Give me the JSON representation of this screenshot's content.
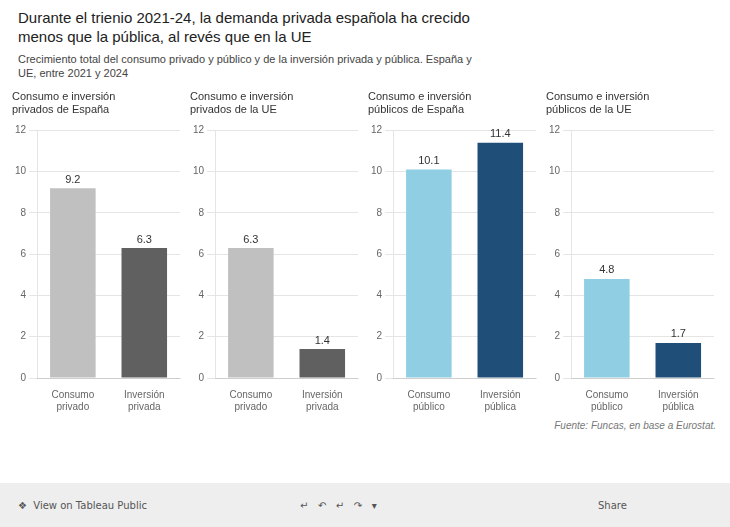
{
  "title": "Durante el trienio 2021-24, la demanda privada española ha crecido\nmenos que la pública, al revés que en la UE",
  "subtitle": "Crecimiento total del consumo privado y público y de la inversión privada y pública. España y\nUE, entre 2021 y 2024",
  "source": "Fuente: Funcas, en base a Eurostat.",
  "annotations": [
    "❖  View on Tableau Public",
    "↵   ↶   ↵   ↷   ▾",
    "Share"
  ],
  "chart_data": [
    {
      "type": "bar",
      "title": "Consumo e inversión\nprivados de España",
      "categories": [
        "Consumo\nprivado",
        "Inversión\nprivada"
      ],
      "values": [
        9.2,
        6.3
      ],
      "colors": [
        "#C0C0C0",
        "#606060"
      ],
      "ylim": [
        0,
        12
      ],
      "yticks": [
        0,
        2,
        4,
        6,
        8,
        10,
        12
      ],
      "grid": true,
      "data_labels": true
    },
    {
      "type": "bar",
      "title": "Consumo e inversión\nprivados de la UE",
      "categories": [
        "Consumo\nprivado",
        "Inversión\nprivada"
      ],
      "values": [
        6.3,
        1.4
      ],
      "colors": [
        "#C0C0C0",
        "#606060"
      ],
      "ylim": [
        0,
        12
      ],
      "yticks": [
        0,
        2,
        4,
        6,
        8,
        10,
        12
      ],
      "grid": true,
      "data_labels": true
    },
    {
      "type": "bar",
      "title": "Consumo e inversión\npúblicos de España",
      "categories": [
        "Consumo\npúblico",
        "Inversión\npública"
      ],
      "values": [
        10.1,
        11.4
      ],
      "colors": [
        "#90CEE4",
        "#1F4E79"
      ],
      "ylim": [
        0,
        12
      ],
      "yticks": [
        0,
        2,
        4,
        6,
        8,
        10,
        12
      ],
      "grid": true,
      "data_labels": true
    },
    {
      "type": "bar",
      "title": "Consumo e inversión\npúblicos de la UE",
      "categories": [
        "Consumo\npúblico",
        "Inversión\npública"
      ],
      "values": [
        4.8,
        1.7
      ],
      "colors": [
        "#90CEE4",
        "#1F4E79"
      ],
      "ylim": [
        0,
        12
      ],
      "yticks": [
        0,
        2,
        4,
        6,
        8,
        10,
        12
      ],
      "grid": true,
      "data_labels": true
    }
  ]
}
